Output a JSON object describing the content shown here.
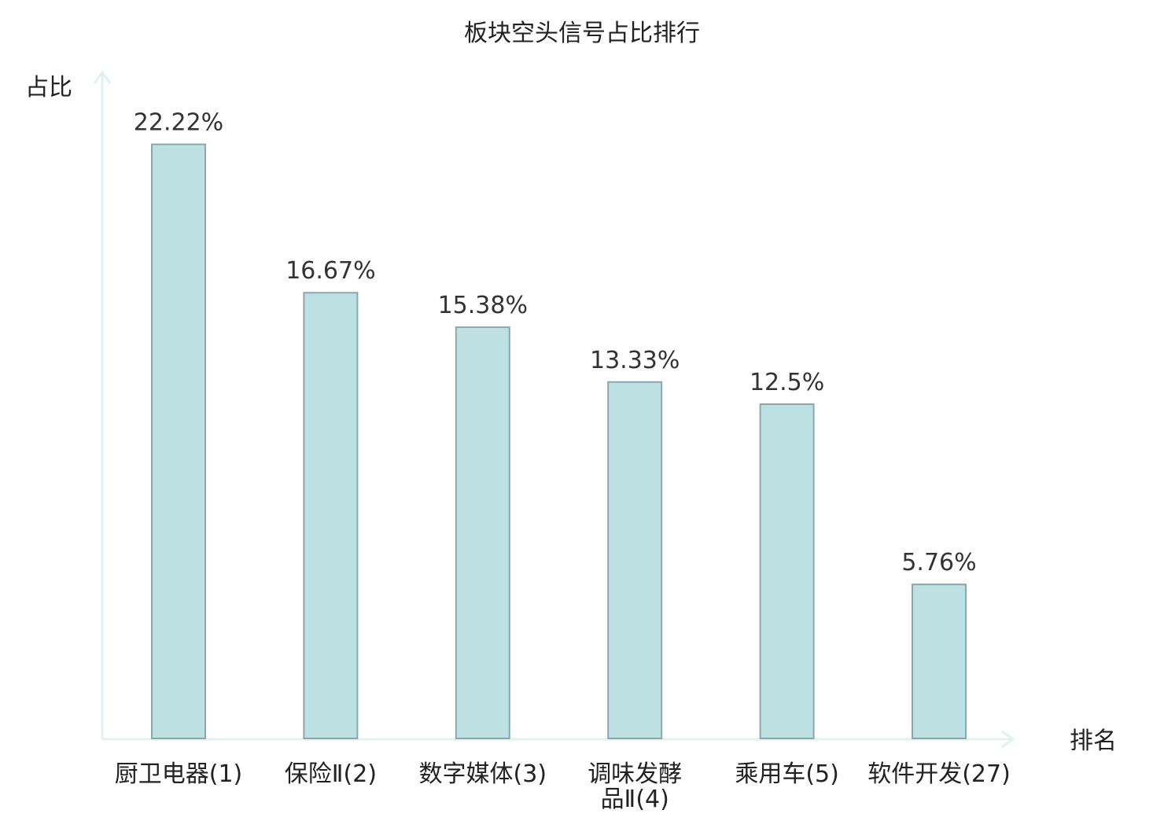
{
  "chart_data": {
    "type": "bar",
    "title": "板块空头信号占比排行",
    "xlabel": "排名",
    "ylabel": "占比",
    "categories": [
      [
        "厨卫电器(1)"
      ],
      [
        "保险Ⅱ(2)"
      ],
      [
        "数字媒体(3)"
      ],
      [
        "调味发酵",
        "品Ⅱ(4)"
      ],
      [
        "乘用车(5)"
      ],
      [
        "软件开发(27)"
      ]
    ],
    "values": [
      22.22,
      16.67,
      15.38,
      13.33,
      12.5,
      5.76
    ],
    "value_labels": [
      "22.22%",
      "16.67%",
      "15.38%",
      "13.33%",
      "12.5%",
      "5.76%"
    ],
    "highlight_index": 5,
    "ylim": [
      0,
      25
    ],
    "grid": false,
    "colors": {
      "bar_fill": "#bde0e2",
      "bar_stroke": "#8aa8ab",
      "axis": "#e0f2ef",
      "highlight_text": "#e31a1a",
      "text": "#222222"
    }
  }
}
